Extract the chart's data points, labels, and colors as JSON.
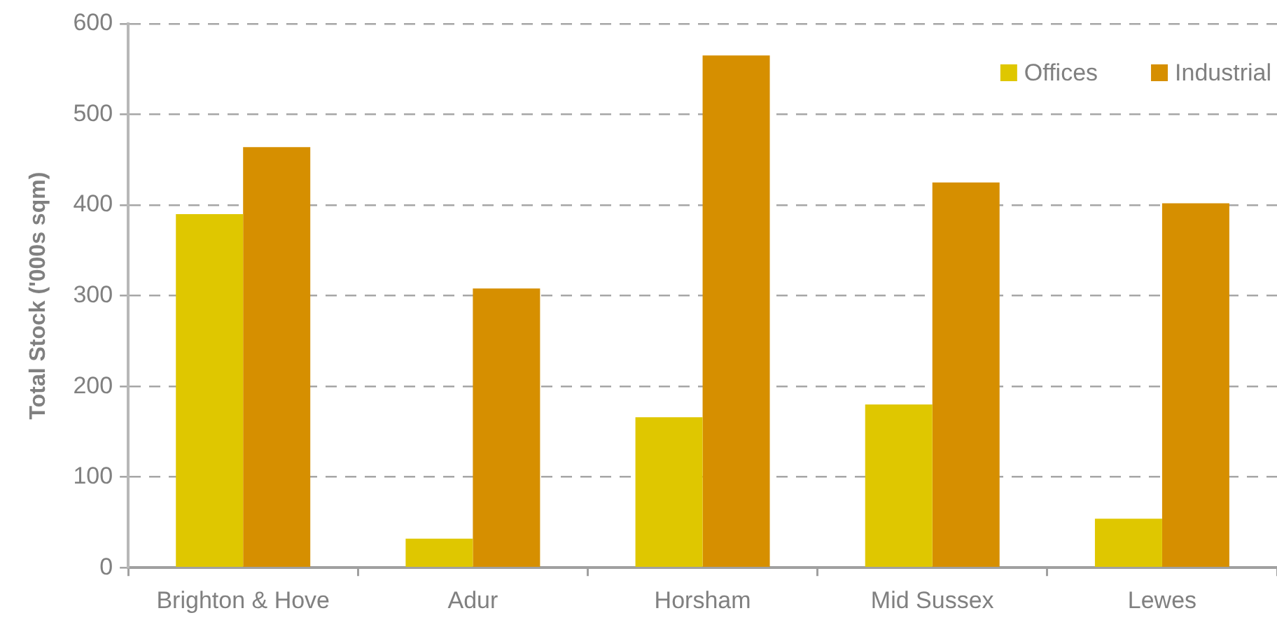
{
  "chart_data": {
    "type": "bar",
    "ylabel": "Total Stock ('000s sqm)",
    "categories": [
      "Brighton & Hove",
      "Adur",
      "Horsham",
      "Mid Sussex",
      "Lewes"
    ],
    "series": [
      {
        "name": "Offices",
        "color": "#dfc700",
        "values": [
          390,
          32,
          166,
          180,
          54
        ]
      },
      {
        "name": "Industrial",
        "color": "#d68f00",
        "values": [
          464,
          308,
          565,
          425,
          402
        ]
      }
    ],
    "ylim": [
      0,
      600
    ],
    "yticks": [
      0,
      100,
      200,
      300,
      400,
      500,
      600
    ],
    "grid": "y",
    "legend": "top right"
  }
}
